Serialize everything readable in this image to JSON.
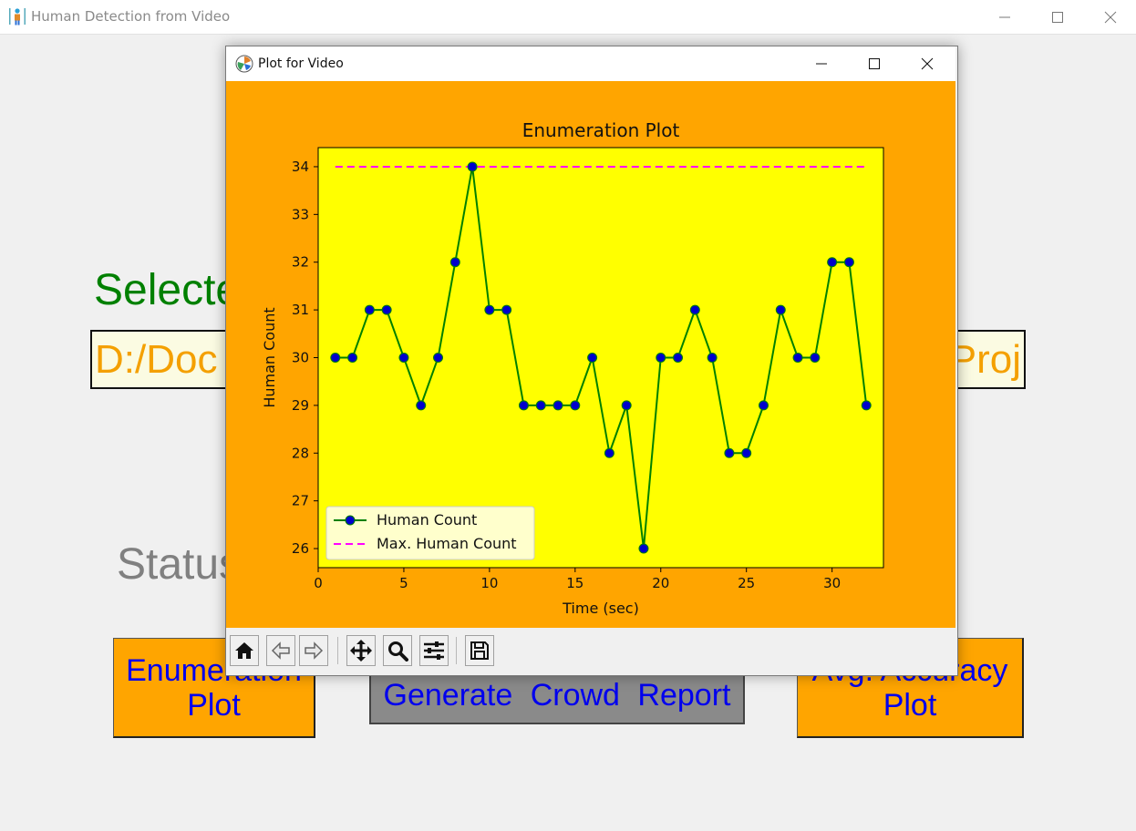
{
  "main_window": {
    "title": "Human Detection from Video",
    "selected_label": "Selected",
    "path_visible_start": "D:/Doc",
    "path_visible_end": "Proj",
    "status_label": "Status",
    "buttons": {
      "enumeration_plot": "Enumeration Plot",
      "generate_report": "Generate  Crowd  Report",
      "avg_accuracy_plot": "Avg. Accuracy Plot"
    }
  },
  "plot_window": {
    "title": "Plot for Video",
    "toolbar": [
      "home-icon",
      "back-icon",
      "forward-icon",
      "pan-icon",
      "zoom-icon",
      "configure-subplots-icon",
      "save-icon"
    ]
  },
  "chart_data": {
    "type": "line",
    "title": "Enumeration Plot",
    "xlabel": "Time (sec)",
    "ylabel": "Human Count",
    "xlim": [
      0,
      33
    ],
    "ylim": [
      25.6,
      34.4
    ],
    "x_ticks": [
      0,
      5,
      10,
      15,
      20,
      25,
      30
    ],
    "y_ticks": [
      26,
      27,
      28,
      29,
      30,
      31,
      32,
      33,
      34
    ],
    "grid": false,
    "legend": "lower-left",
    "series": [
      {
        "name": "Human Count",
        "color": "#008000",
        "marker_color": "#0000cc",
        "x": [
          1,
          2,
          3,
          4,
          5,
          6,
          7,
          8,
          9,
          10,
          11,
          12,
          13,
          14,
          15,
          16,
          17,
          18,
          19,
          20,
          21,
          22,
          23,
          24,
          25,
          26,
          27,
          28,
          29,
          30,
          31,
          32
        ],
        "y": [
          30,
          30,
          31,
          31,
          30,
          29,
          30,
          32,
          34,
          31,
          31,
          29,
          29,
          29,
          29,
          30,
          28,
          29,
          26,
          30,
          30,
          31,
          30,
          28,
          28,
          29,
          31,
          30,
          30,
          32,
          32,
          29
        ]
      },
      {
        "name": "Max. Human Count",
        "color": "#ff00ff",
        "style": "dashed",
        "x": [
          1,
          32
        ],
        "y": [
          34,
          34
        ]
      }
    ],
    "figure_bg": "#ffa500",
    "axes_bg": "#ffff00"
  }
}
